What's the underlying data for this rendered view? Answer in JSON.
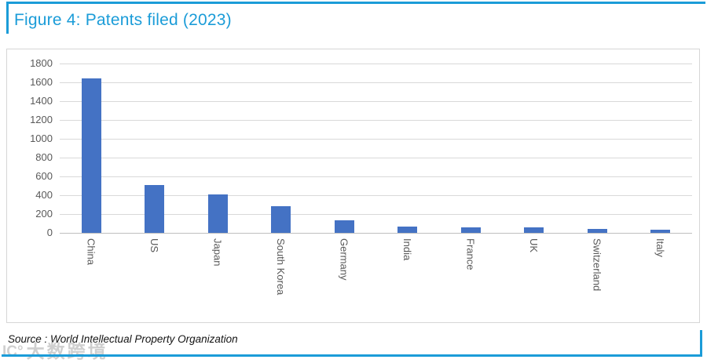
{
  "page": {
    "title": "Figure 4: Patents filed (2023)",
    "source": "Source : World Intellectual Property Organization",
    "watermark_logo": "IC°",
    "watermark_text": "大数跨境"
  },
  "colors": {
    "accent_blue": "#1b9cd8",
    "bar_blue": "#4472c4",
    "gridline": "#d9d9d9",
    "axis_text": "#595959"
  },
  "chart_data": {
    "type": "bar",
    "title": "Patents filed (2023)",
    "categories": [
      "China",
      "US",
      "Japan",
      "South Korea",
      "Germany",
      "India",
      "France",
      "UK",
      "Switzerland",
      "Italy"
    ],
    "values": [
      1640,
      510,
      410,
      280,
      135,
      65,
      55,
      55,
      45,
      35
    ],
    "xlabel": "",
    "ylabel": "",
    "ylim": [
      0,
      1800
    ],
    "yticks": [
      0,
      200,
      400,
      600,
      800,
      1000,
      1200,
      1400,
      1600,
      1800
    ],
    "grid": true,
    "legend": false,
    "bar_color": "#4472c4"
  }
}
